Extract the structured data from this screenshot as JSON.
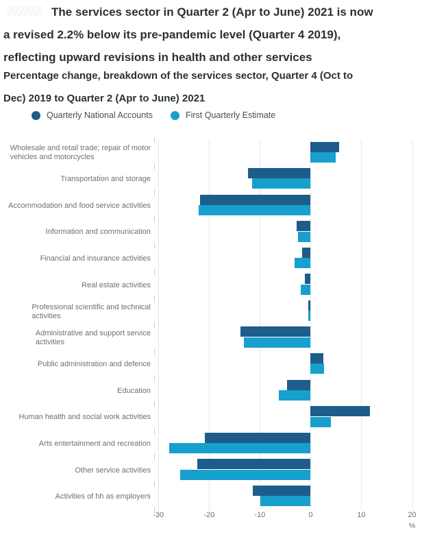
{
  "header": {
    "title_lines": [
      "The services sector in Quarter 2 (Apr to June) 2021 is now",
      "a revised 2.2% below its pre-pandemic level (Quarter 4 2019),",
      "reflecting upward revisions in health and other services"
    ],
    "subtitle_lines": [
      "Percentage change, breakdown of the services sector, Quarter 4 (Oct to",
      "Dec) 2019 to Quarter 2 (Apr to June) 2021"
    ]
  },
  "legend": {
    "items": [
      {
        "label": "Quarterly National Accounts",
        "color": "#1d5d8b"
      },
      {
        "label": "First Quarterly Estimate",
        "color": "#17a0cd"
      }
    ]
  },
  "chart_data": {
    "type": "bar",
    "orientation": "horizontal",
    "title": "The services sector in Quarter 2 (Apr to June) 2021 is now a revised 2.2% below its pre-pandemic level (Quarter 4 2019), reflecting upward revisions in health and other services",
    "subtitle": "Percentage change, breakdown of the services sector, Quarter 4 (Oct to Dec) 2019 to Quarter 2 (Apr to June) 2021",
    "categories": [
      "Wholesale and retail trade; repair of motor\nvehicles and motorcycles",
      "Transportation and storage",
      "Accommodation and food service activities",
      "Information and communication",
      "Financial and insurance activities",
      "Real estate activities",
      "Professional scientific and technical\nactivities",
      "Administrative and support service\nactivities",
      "Public administration and defence",
      "Education",
      "Human health and social work activities",
      "Arts entertainment and recreation",
      "Other service activities",
      "Activities of hh as employers"
    ],
    "series": [
      {
        "name": "Quarterly National Accounts",
        "color": "#1d5d8b",
        "values": [
          5.6,
          -12.4,
          -21.8,
          -2.7,
          -1.7,
          -1.2,
          -0.5,
          -13.8,
          2.5,
          -4.6,
          11.7,
          -20.8,
          -22.3,
          -11.4
        ]
      },
      {
        "name": "First Quarterly Estimate",
        "color": "#17a0cd",
        "values": [
          4.9,
          -11.5,
          -22.1,
          -2.5,
          -3.1,
          -1.9,
          -0.5,
          -13.2,
          2.6,
          -6.3,
          4.0,
          -27.8,
          -25.7,
          -9.9
        ]
      }
    ],
    "xlim": [
      -30,
      20
    ],
    "x_ticks": [
      -30,
      -20,
      -10,
      0,
      10,
      20
    ],
    "x_tick_labels": [
      "-30",
      "-20",
      "-10",
      "0",
      "10",
      "20"
    ],
    "x_unit": "%",
    "grid": "vertical",
    "legend_position": "top"
  }
}
